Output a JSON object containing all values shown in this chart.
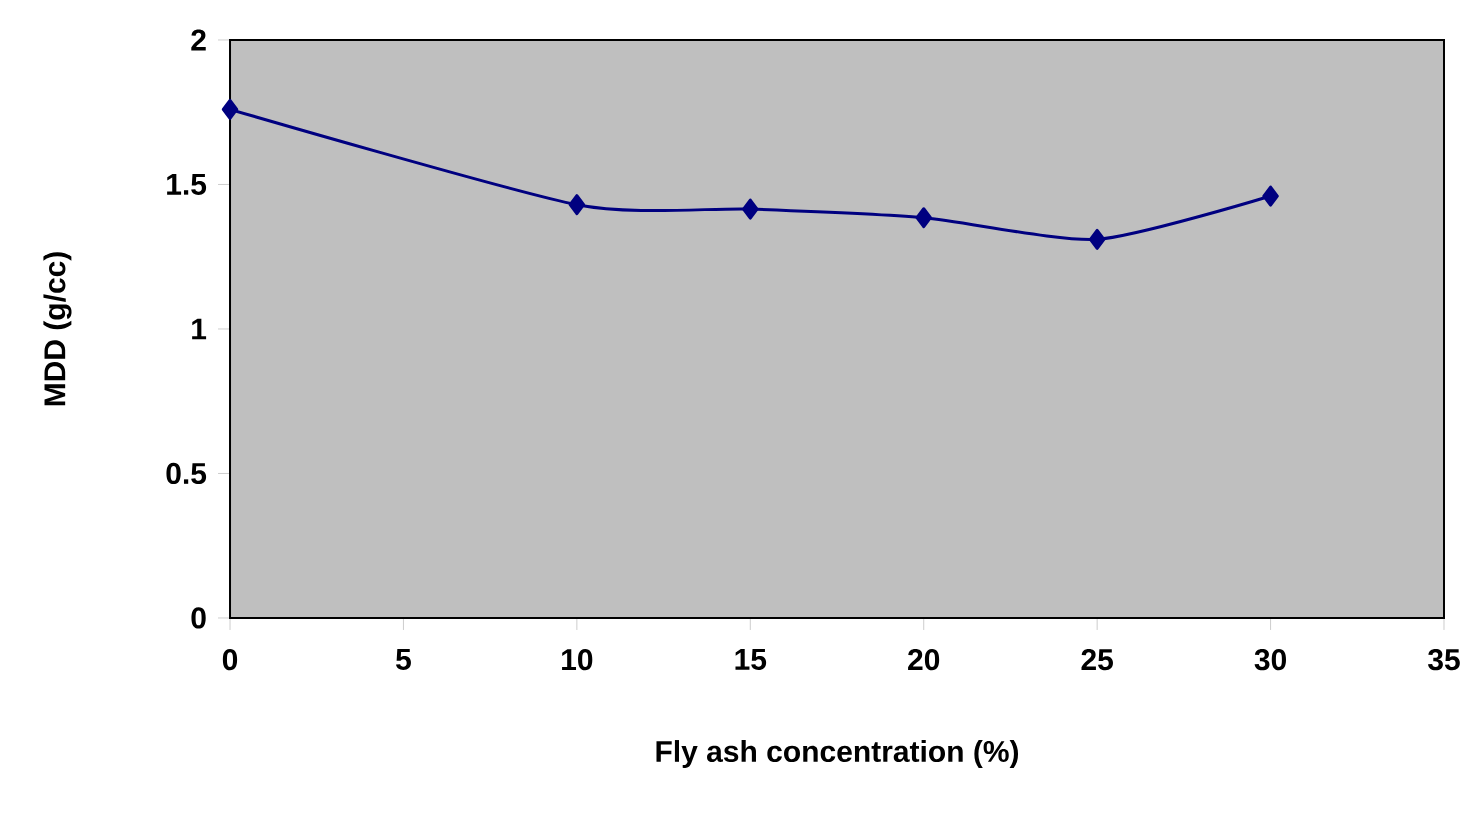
{
  "chart_data": {
    "type": "line",
    "xlabel": "Fly ash concentration (%)",
    "ylabel": "MDD (g/cc)",
    "x": [
      0,
      10,
      15,
      20,
      25,
      30
    ],
    "series": [
      {
        "color": "#000080",
        "values": [
          1.76,
          1.43,
          1.415,
          1.385,
          1.31,
          1.46
        ]
      }
    ],
    "xlim": [
      0,
      35
    ],
    "xticks": [
      0,
      5,
      10,
      15,
      20,
      25,
      30,
      35
    ],
    "ylim": [
      0,
      2
    ],
    "yticks": [
      0,
      0.5,
      1,
      1.5,
      2
    ],
    "marker": "diamond",
    "line_style": "solid"
  }
}
